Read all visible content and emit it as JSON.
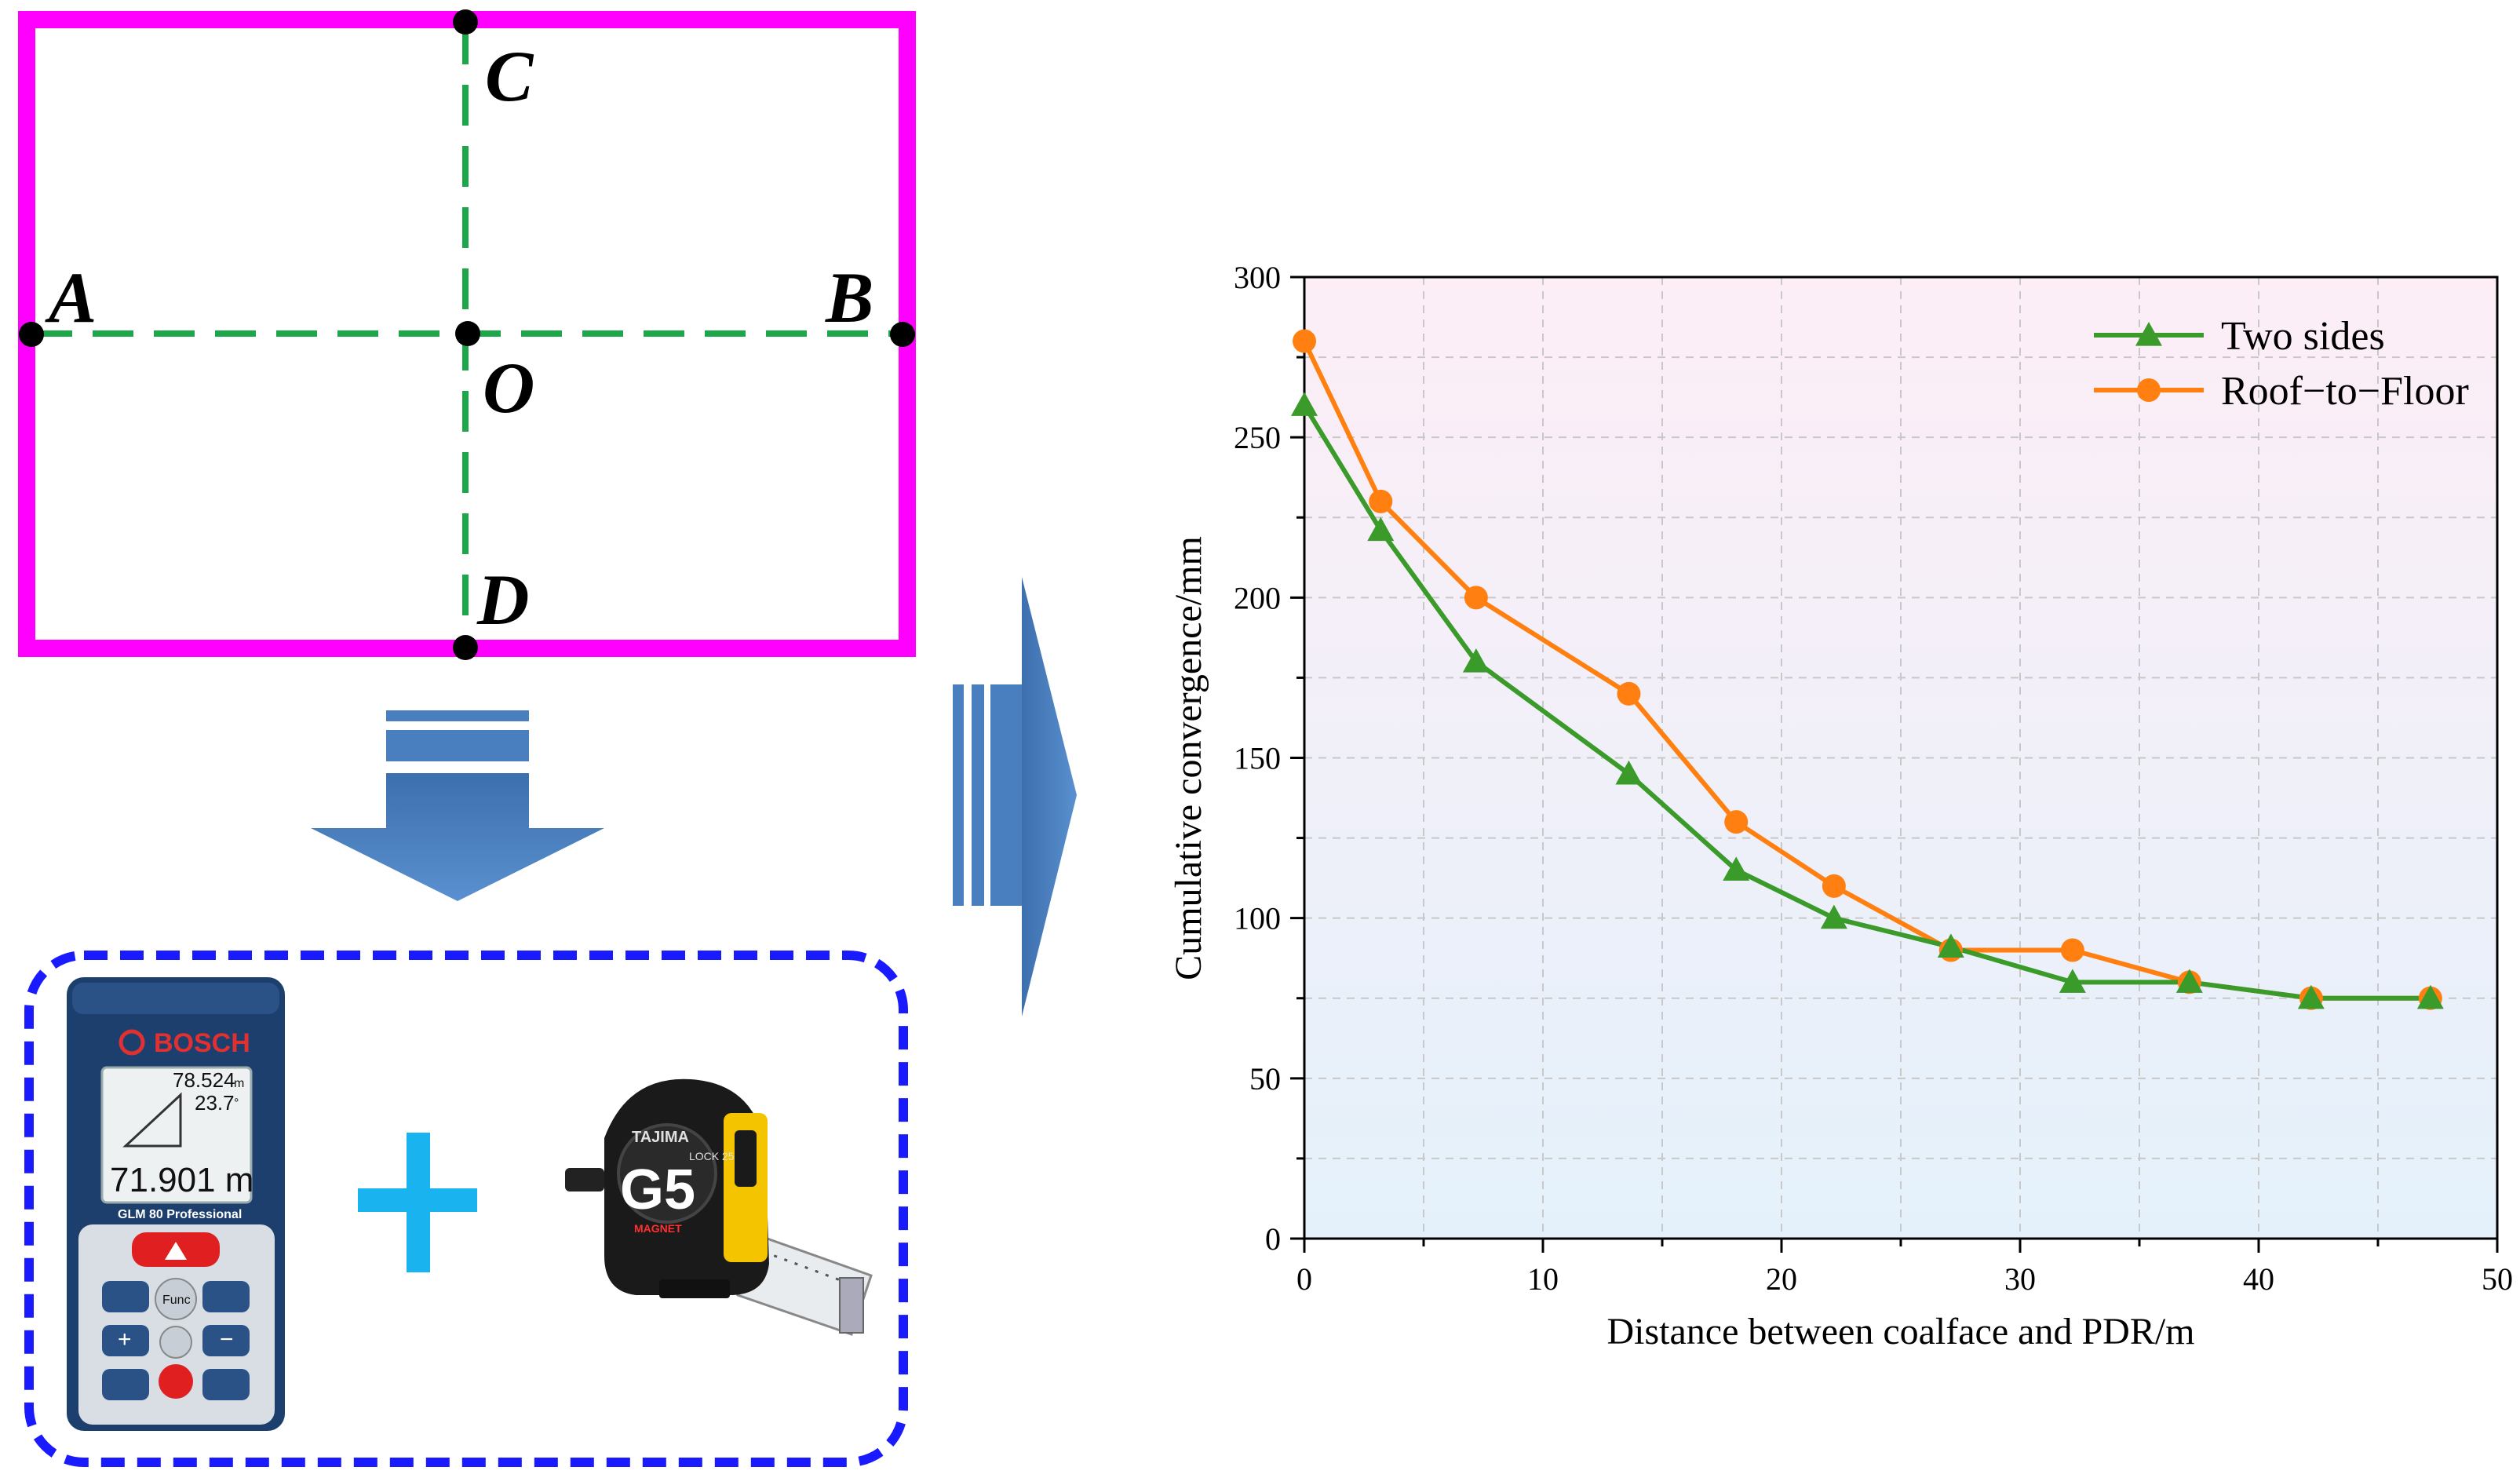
{
  "diagram": {
    "points": {
      "a": "A",
      "b": "B",
      "c": "C",
      "d": "D",
      "o": "O"
    },
    "colors": {
      "frame": "#ff00ff",
      "dashed": "#1ea64a",
      "arrow": "#4a7fbf",
      "dotted_box": "#1a1aff",
      "plus": "#19b4f0"
    }
  },
  "devices": {
    "rangefinder": {
      "brand": "BOSCH",
      "reading_1": "78.524",
      "reading_1_unit": "m",
      "reading_2": "23.7",
      "reading_2_unit": "°",
      "main_reading": "71.901 m",
      "model": "GLM 80 Professional",
      "func_label": "Func"
    },
    "tape": {
      "brand": "TAJIMA",
      "model": "G5",
      "sub": "LOCK 25",
      "magnet": "MAGNET"
    }
  },
  "chart_data": {
    "type": "line",
    "xlabel": "Distance between coalface and PDR/m",
    "ylabel": "Cumulative convergence/mm",
    "xlim": [
      0,
      50
    ],
    "ylim": [
      0,
      300
    ],
    "x_ticks": [
      "0",
      "10",
      "20",
      "30",
      "40",
      "50"
    ],
    "y_ticks": [
      "0",
      "50",
      "100",
      "150",
      "200",
      "250",
      "300"
    ],
    "grid": true,
    "legend_position": "top-right",
    "background": "gradient pink-to-light-blue",
    "series": [
      {
        "name": "Two sides",
        "color": "#3a9a2a",
        "marker": "triangle",
        "x": [
          0,
          3.2,
          7.2,
          13.6,
          18.1,
          22.2,
          27.1,
          32.2,
          37.1,
          42.2,
          47.2
        ],
        "y": [
          260,
          221,
          180,
          145,
          115,
          100,
          91,
          80,
          80,
          75,
          75
        ]
      },
      {
        "name": "Roof−to−Floor",
        "color": "#ff8010",
        "marker": "circle",
        "x": [
          0,
          3.2,
          7.2,
          13.6,
          18.1,
          22.2,
          27.1,
          32.2,
          37.1,
          42.2,
          47.2
        ],
        "y": [
          280,
          230,
          200,
          170,
          130,
          110,
          90,
          90,
          80,
          75,
          75
        ]
      }
    ]
  }
}
